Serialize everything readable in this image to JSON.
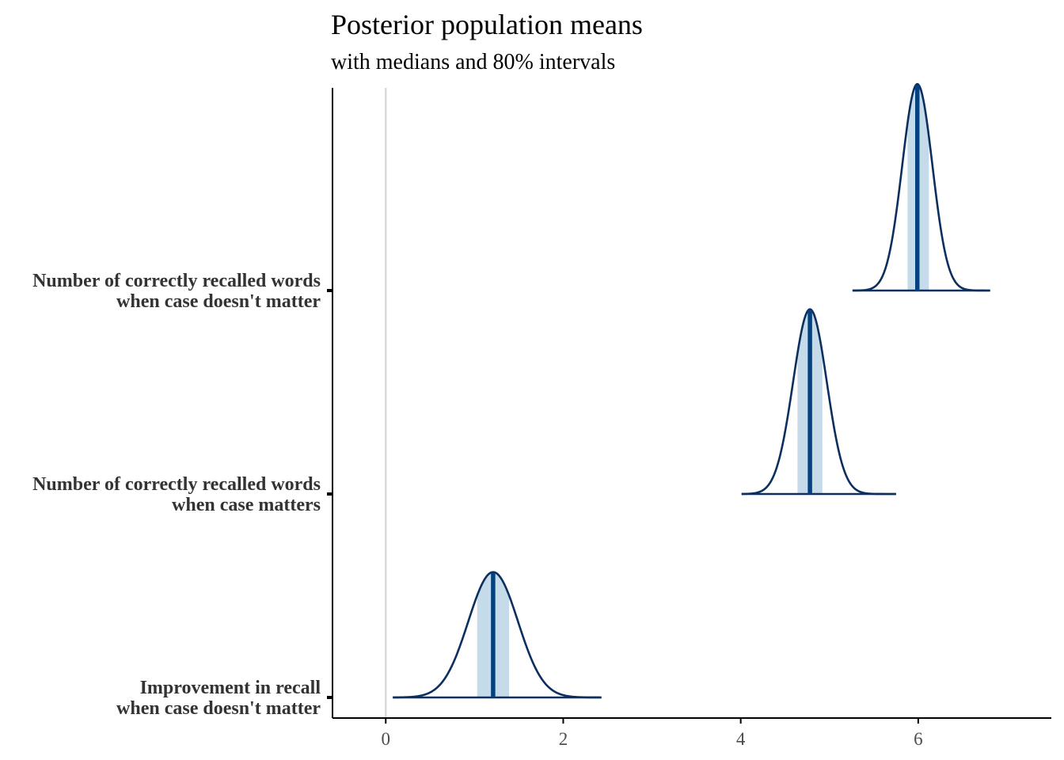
{
  "chart_data": {
    "type": "density-ridge",
    "title": "Posterior population means",
    "subtitle": "with medians and 80% intervals",
    "xlabel": "",
    "ylabel": "",
    "xlim": [
      -0.6,
      7.5
    ],
    "x_ticks": [
      0,
      2,
      4,
      6
    ],
    "reference_line_x": 0,
    "interval_probability": 0.8,
    "grid": false,
    "legend": "none",
    "series": [
      {
        "name": "Improvement in recall when case doesn't matter",
        "label_lines": [
          "Improvement in recall",
          "when case doesn't matter"
        ],
        "median": 1.21,
        "interval": [
          1.03,
          1.39
        ],
        "mean": 1.21,
        "sd": 0.28,
        "range": [
          0.08,
          2.43
        ]
      },
      {
        "name": "Number of correctly recalled words when case matters",
        "label_lines": [
          "Number of correctly recalled words",
          "when case matters"
        ],
        "median": 4.78,
        "interval": [
          4.64,
          4.92
        ],
        "mean": 4.78,
        "sd": 0.19,
        "range": [
          4.01,
          5.75
        ]
      },
      {
        "name": "Number of correctly recalled words when case doesn't matter",
        "label_lines": [
          "Number of correctly recalled words",
          "when case doesn't matter"
        ],
        "median": 5.99,
        "interval": [
          5.88,
          6.12
        ],
        "mean": 5.99,
        "sd": 0.17,
        "range": [
          5.26,
          6.81
        ]
      }
    ],
    "colors": {
      "outline": "#0b2f5e",
      "interval_fill": "#c6dbea",
      "median_line": "#03427f",
      "zero_line": "#d9d9d9",
      "axis": "#000000"
    }
  }
}
